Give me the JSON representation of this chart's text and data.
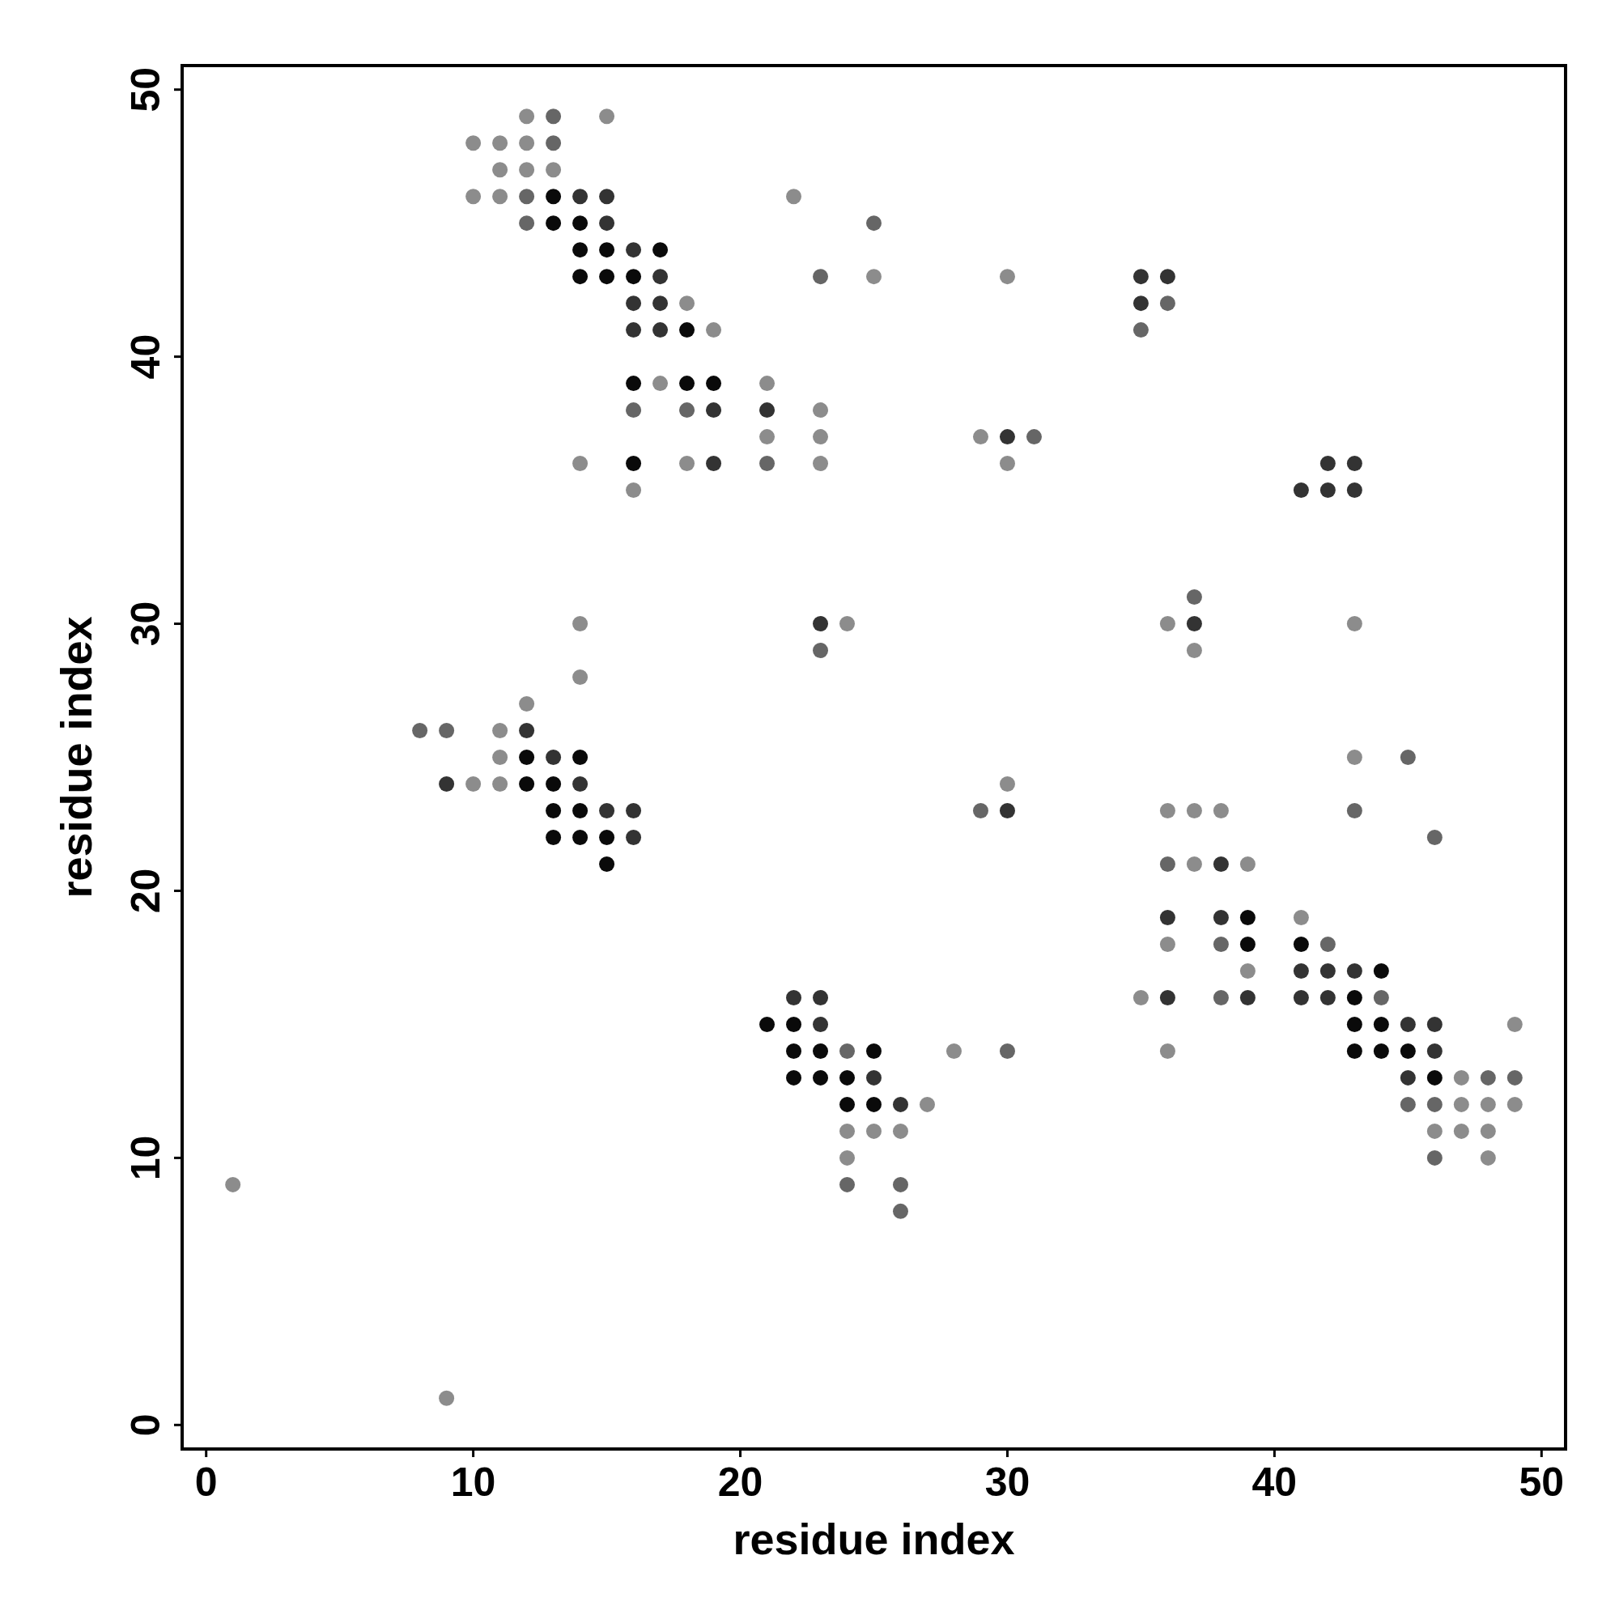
{
  "chart_data": {
    "type": "scatter",
    "xlabel": "residue index",
    "ylabel": "residue index",
    "xlim": [
      -0.9,
      50.9
    ],
    "ylim": [
      -0.9,
      50.9
    ],
    "xticks": [
      0,
      10,
      20,
      30,
      40,
      50
    ],
    "yticks": [
      0,
      10,
      20,
      30,
      40,
      50
    ],
    "grid": false,
    "marker": "circle",
    "series": [
      {
        "x": [
          12,
          13,
          15,
          10,
          11,
          12,
          13,
          11,
          12,
          13,
          10,
          11,
          12,
          13,
          14,
          15,
          22,
          12,
          13,
          14,
          15,
          25,
          14,
          15,
          16,
          17,
          14,
          15,
          16,
          17,
          23,
          25,
          30,
          35,
          36,
          16,
          17,
          18,
          35,
          36,
          16,
          17,
          18,
          19,
          35,
          16,
          17,
          18,
          19,
          21,
          16,
          18,
          19,
          21,
          23,
          21,
          23,
          29,
          30,
          31,
          14,
          16,
          18,
          19,
          21,
          23,
          30,
          42,
          43,
          16,
          41,
          42,
          43,
          37,
          14,
          23,
          24,
          36,
          37,
          43,
          23,
          37,
          14,
          12,
          8,
          9,
          11,
          12,
          11,
          12,
          13,
          14,
          43,
          45,
          9,
          10,
          11,
          12,
          13,
          14,
          30,
          13,
          14,
          15,
          16,
          29,
          30,
          36,
          37,
          38,
          43,
          13,
          14,
          15,
          16,
          46,
          15,
          36,
          37,
          38,
          39,
          36,
          38,
          39,
          41,
          36,
          38,
          39,
          41,
          42,
          39,
          41,
          42,
          43,
          44,
          22,
          23,
          35,
          36,
          38,
          39,
          41,
          42,
          43,
          44,
          21,
          22,
          23,
          43,
          44,
          45,
          46,
          49,
          22,
          23,
          24,
          25,
          28,
          30,
          36,
          43,
          44,
          45,
          46,
          22,
          23,
          24,
          25,
          45,
          46,
          47,
          48,
          49,
          24,
          25,
          26,
          27,
          45,
          46,
          47,
          48,
          49,
          24,
          25,
          26,
          46,
          47,
          48,
          24,
          46,
          48,
          1,
          24,
          26,
          26,
          9
        ],
        "values": [
          49,
          49,
          49,
          48,
          48,
          48,
          48,
          47,
          47,
          47,
          46,
          46,
          46,
          46,
          46,
          46,
          46,
          45,
          45,
          45,
          45,
          45,
          44,
          44,
          44,
          44,
          43,
          43,
          43,
          43,
          43,
          43,
          43,
          43,
          43,
          42,
          42,
          42,
          42,
          42,
          41,
          41,
          41,
          41,
          41,
          39,
          39,
          39,
          39,
          39,
          38,
          38,
          38,
          38,
          38,
          37,
          37,
          37,
          37,
          37,
          36,
          36,
          36,
          36,
          36,
          36,
          36,
          36,
          36,
          35,
          35,
          35,
          35,
          31,
          30,
          30,
          30,
          30,
          30,
          30,
          29,
          29,
          28,
          27,
          26,
          26,
          26,
          26,
          25,
          25,
          25,
          25,
          25,
          25,
          24,
          24,
          24,
          24,
          24,
          24,
          24,
          23,
          23,
          23,
          23,
          23,
          23,
          23,
          23,
          23,
          23,
          22,
          22,
          22,
          22,
          22,
          21,
          21,
          21,
          21,
          21,
          19,
          19,
          19,
          19,
          18,
          18,
          18,
          18,
          18,
          17,
          17,
          17,
          17,
          17,
          16,
          16,
          16,
          16,
          16,
          16,
          16,
          16,
          16,
          16,
          15,
          15,
          15,
          15,
          15,
          15,
          15,
          15,
          14,
          14,
          14,
          14,
          14,
          14,
          14,
          14,
          14,
          14,
          14,
          13,
          13,
          13,
          13,
          13,
          13,
          13,
          13,
          13,
          12,
          12,
          12,
          12,
          12,
          12,
          12,
          12,
          12,
          11,
          11,
          11,
          11,
          11,
          11,
          10,
          10,
          10,
          9,
          9,
          9,
          8,
          1
        ],
        "colors": [
          "#8c8c8c",
          "#666666",
          "#8c8c8c",
          "#8c8c8c",
          "#8c8c8c",
          "#8c8c8c",
          "#666666",
          "#8c8c8c",
          "#8c8c8c",
          "#8c8c8c",
          "#8c8c8c",
          "#8c8c8c",
          "#666666",
          "#0a0a0a",
          "#333333",
          "#333333",
          "#8c8c8c",
          "#666666",
          "#0a0a0a",
          "#0a0a0a",
          "#333333",
          "#666666",
          "#0a0a0a",
          "#0a0a0a",
          "#333333",
          "#0a0a0a",
          "#0a0a0a",
          "#0a0a0a",
          "#0a0a0a",
          "#333333",
          "#666666",
          "#8c8c8c",
          "#8c8c8c",
          "#333333",
          "#333333",
          "#333333",
          "#333333",
          "#8c8c8c",
          "#333333",
          "#666666",
          "#333333",
          "#333333",
          "#0a0a0a",
          "#8c8c8c",
          "#666666",
          "#0a0a0a",
          "#8c8c8c",
          "#0a0a0a",
          "#0a0a0a",
          "#8c8c8c",
          "#666666",
          "#666666",
          "#333333",
          "#333333",
          "#8c8c8c",
          "#8c8c8c",
          "#8c8c8c",
          "#8c8c8c",
          "#333333",
          "#666666",
          "#8c8c8c",
          "#0a0a0a",
          "#8c8c8c",
          "#333333",
          "#666666",
          "#8c8c8c",
          "#8c8c8c",
          "#333333",
          "#333333",
          "#8c8c8c",
          "#333333",
          "#333333",
          "#333333",
          "#666666",
          "#8c8c8c",
          "#333333",
          "#8c8c8c",
          "#8c8c8c",
          "#333333",
          "#8c8c8c",
          "#666666",
          "#8c8c8c",
          "#8c8c8c",
          "#8c8c8c",
          "#666666",
          "#666666",
          "#8c8c8c",
          "#333333",
          "#8c8c8c",
          "#0a0a0a",
          "#333333",
          "#0a0a0a",
          "#8c8c8c",
          "#666666",
          "#333333",
          "#8c8c8c",
          "#8c8c8c",
          "#0a0a0a",
          "#0a0a0a",
          "#333333",
          "#8c8c8c",
          "#0a0a0a",
          "#0a0a0a",
          "#333333",
          "#333333",
          "#666666",
          "#333333",
          "#8c8c8c",
          "#8c8c8c",
          "#8c8c8c",
          "#666666",
          "#0a0a0a",
          "#0a0a0a",
          "#0a0a0a",
          "#333333",
          "#666666",
          "#0a0a0a",
          "#666666",
          "#8c8c8c",
          "#333333",
          "#8c8c8c",
          "#333333",
          "#333333",
          "#0a0a0a",
          "#8c8c8c",
          "#8c8c8c",
          "#666666",
          "#0a0a0a",
          "#0a0a0a",
          "#666666",
          "#8c8c8c",
          "#333333",
          "#333333",
          "#333333",
          "#0a0a0a",
          "#333333",
          "#333333",
          "#8c8c8c",
          "#333333",
          "#666666",
          "#333333",
          "#333333",
          "#333333",
          "#0a0a0a",
          "#666666",
          "#0a0a0a",
          "#0a0a0a",
          "#333333",
          "#0a0a0a",
          "#0a0a0a",
          "#333333",
          "#333333",
          "#8c8c8c",
          "#0a0a0a",
          "#0a0a0a",
          "#666666",
          "#0a0a0a",
          "#8c8c8c",
          "#666666",
          "#8c8c8c",
          "#0a0a0a",
          "#0a0a0a",
          "#0a0a0a",
          "#333333",
          "#0a0a0a",
          "#0a0a0a",
          "#0a0a0a",
          "#333333",
          "#333333",
          "#0a0a0a",
          "#8c8c8c",
          "#666666",
          "#666666",
          "#0a0a0a",
          "#0a0a0a",
          "#333333",
          "#8c8c8c",
          "#666666",
          "#666666",
          "#8c8c8c",
          "#8c8c8c",
          "#8c8c8c",
          "#8c8c8c",
          "#8c8c8c",
          "#8c8c8c",
          "#8c8c8c",
          "#8c8c8c",
          "#8c8c8c",
          "#8c8c8c",
          "#666666",
          "#8c8c8c",
          "#8c8c8c",
          "#666666",
          "#666666",
          "#666666",
          "#8c8c8c"
        ]
      }
    ]
  }
}
